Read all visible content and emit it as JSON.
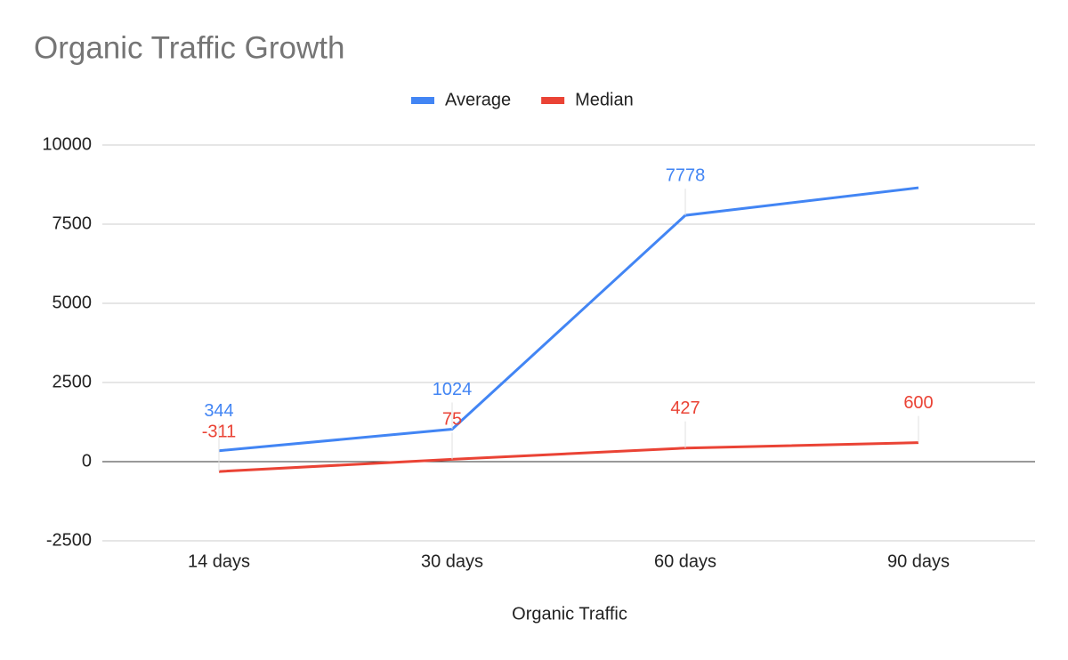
{
  "chart_data": {
    "type": "line",
    "title": "Organic Traffic Growth",
    "x_label": "Organic Traffic",
    "categories": [
      "14 days",
      "30 days",
      "60 days",
      "90 days"
    ],
    "series": [
      {
        "name": "Average",
        "color": "#4285f4",
        "values": [
          344,
          1024,
          7778,
          8650
        ],
        "value_labels": [
          "344",
          "1024",
          "7778",
          null
        ]
      },
      {
        "name": "Median",
        "color": "#ea4335",
        "values": [
          -311,
          75,
          427,
          600
        ]
      }
    ],
    "ylim": [
      -2500,
      10000
    ],
    "yticks": [
      -2500,
      0,
      2500,
      5000,
      7500,
      10000
    ],
    "grid": true,
    "legend": "top"
  }
}
